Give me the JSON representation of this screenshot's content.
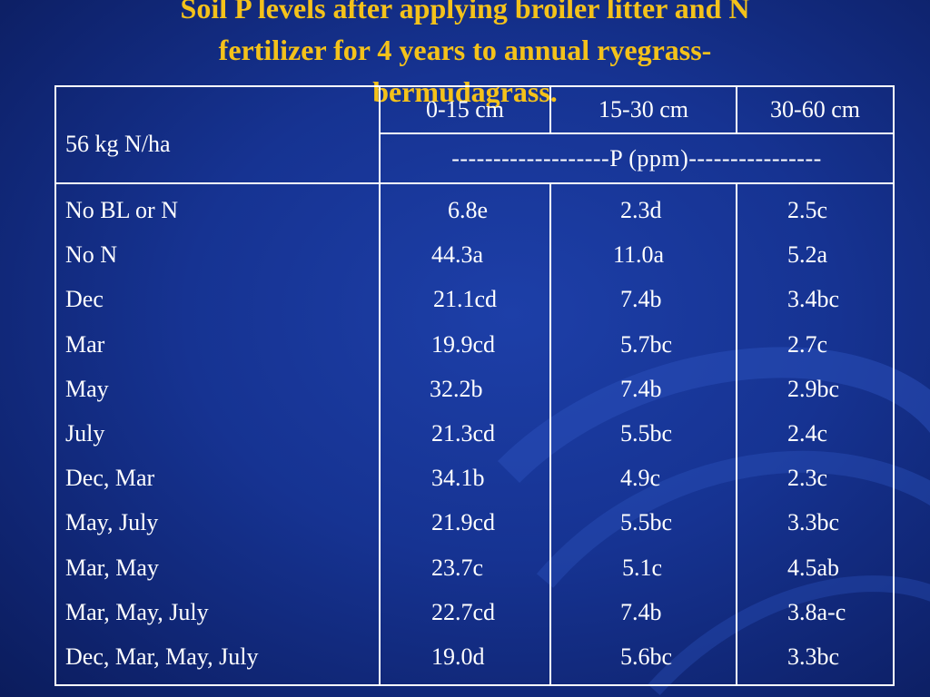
{
  "slide": {
    "title_lines": [
      "Soil P levels after applying broiler litter and N",
      "fertilizer for 4 years to annual ryegrass-",
      "bermudagrass."
    ]
  },
  "table": {
    "row_header": "56 kg N/ha",
    "depth_headers": [
      "0-15 cm",
      "15-30 cm",
      "30-60 cm"
    ],
    "unit_header": "-------------------P (ppm)----------------",
    "treatments": [
      "No BL or N",
      "No N",
      "Dec",
      "Mar",
      "May",
      "July",
      "Dec, Mar",
      "May, July",
      "Mar, May",
      "Mar, May, July",
      "Dec, Mar, May, July"
    ],
    "depth_0_15": [
      "6.8e",
      "44.3a",
      "21.1cd",
      "19.9cd",
      "32.2b",
      "21.3cd",
      "34.1b",
      "21.9cd",
      "23.7c",
      "22.7cd",
      "19.0d"
    ],
    "depth_15_30": [
      "2.3d",
      "11.0a",
      "7.4b",
      "5.7bc",
      "7.4b",
      "5.5bc",
      "4.9c",
      "5.5bc",
      "5.1c",
      "7.4b",
      "5.6bc"
    ],
    "depth_30_60": [
      "2.5c",
      "5.2a",
      "3.4bc",
      "2.7c",
      "2.9bc",
      "2.4c",
      "2.3c",
      "3.3bc",
      "4.5ab",
      "3.8a-c",
      "3.3bc"
    ]
  }
}
